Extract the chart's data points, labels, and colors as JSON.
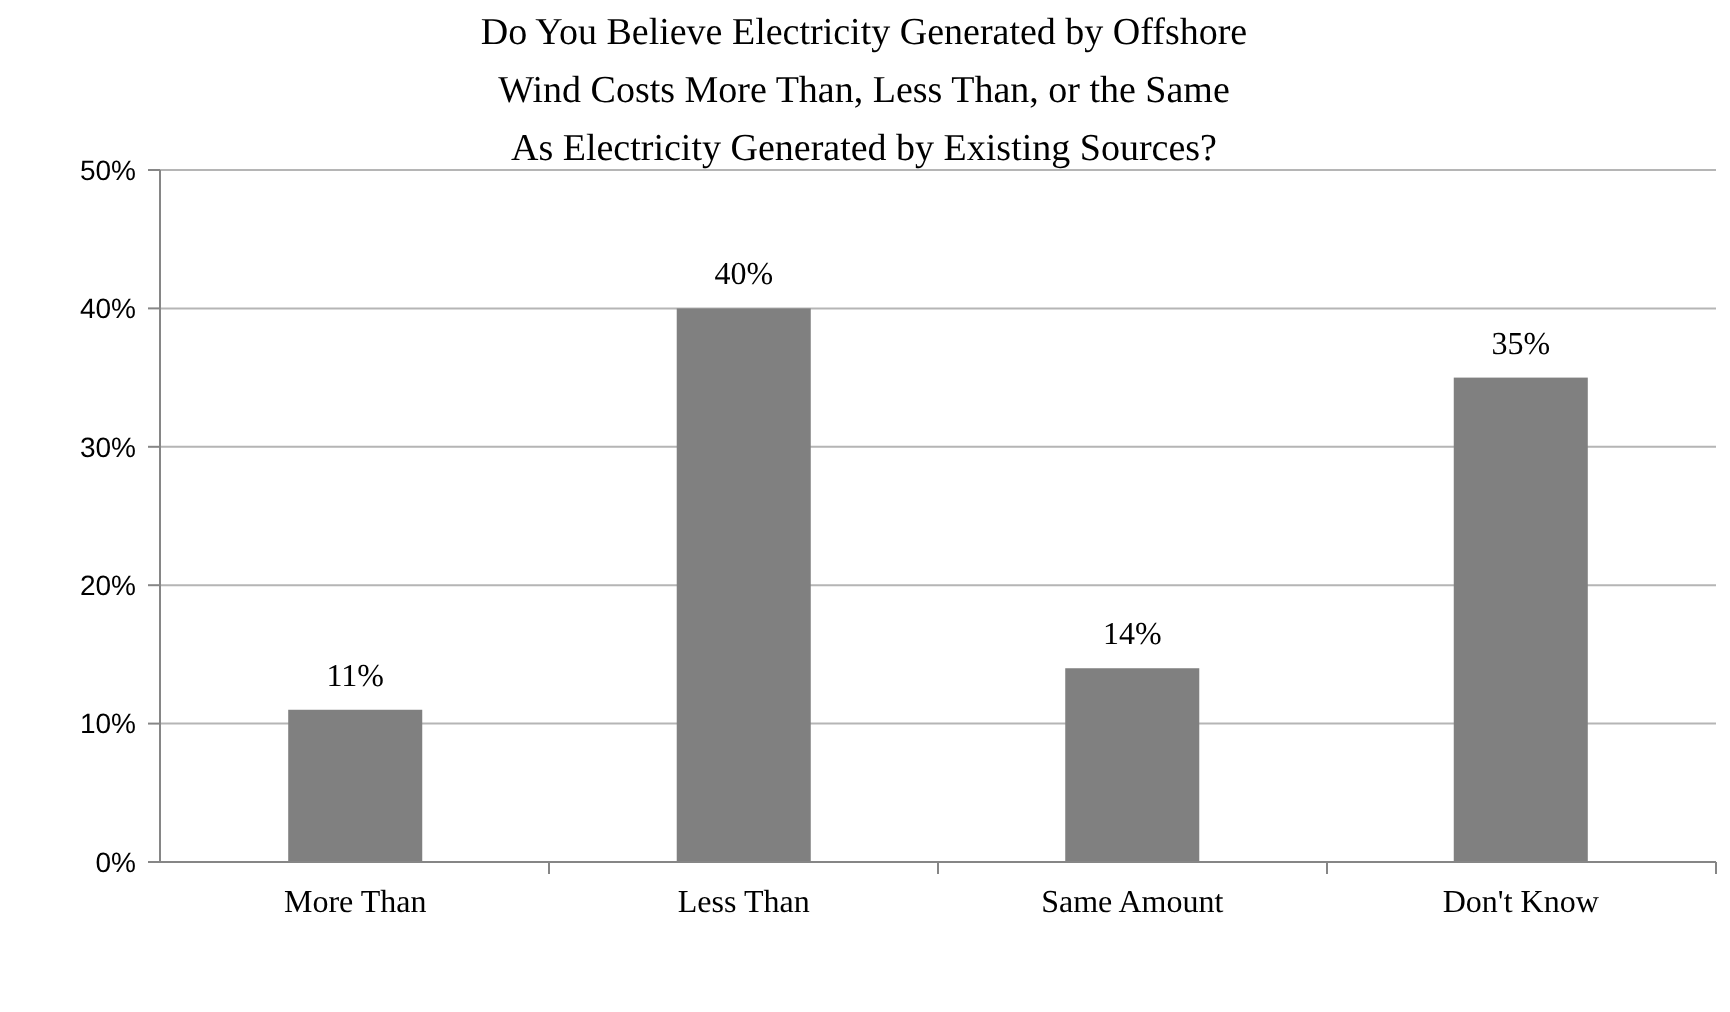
{
  "chart_data": {
    "type": "bar",
    "title": "Do You Believe Electricity Generated by Offshore\nWind Costs More Than, Less Than, or the Same\nAs Electricity Generated by Existing  Sources?",
    "categories": [
      "More Than",
      "Less Than",
      "Same Amount",
      "Don't Know"
    ],
    "values": [
      11,
      40,
      14,
      35
    ],
    "value_labels": [
      "11%",
      "40%",
      "14%",
      "35%"
    ],
    "color": "#808080",
    "ylim": [
      0,
      50
    ],
    "yticks": [
      {
        "value": 0,
        "label": "0%"
      },
      {
        "value": 10,
        "label": "10%"
      },
      {
        "value": 20,
        "label": "20%"
      },
      {
        "value": 30,
        "label": "30%"
      },
      {
        "value": 40,
        "label": "40%"
      },
      {
        "value": 50,
        "label": "50%"
      }
    ],
    "grid": "y"
  }
}
